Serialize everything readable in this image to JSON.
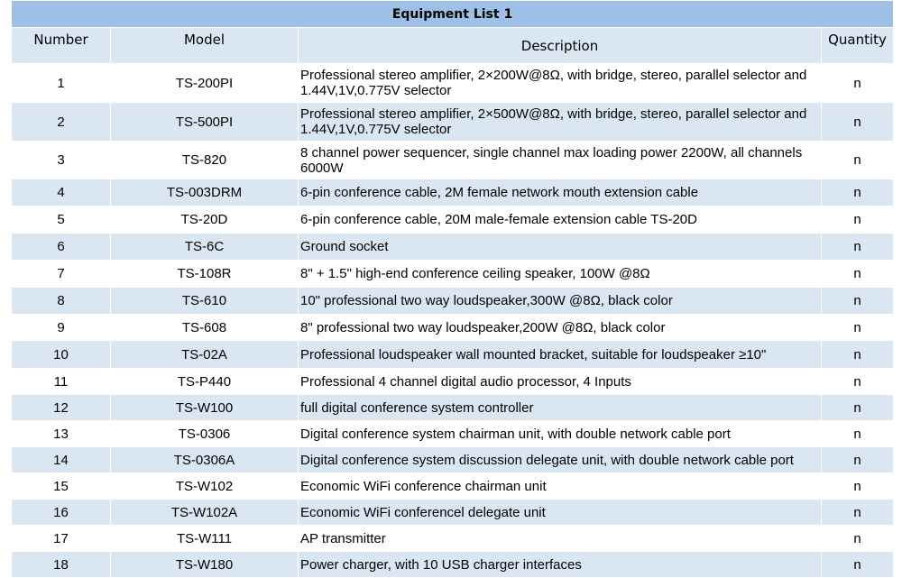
{
  "title": "Equipment List 1",
  "headers": {
    "number": "Number",
    "model": "Model",
    "description": "Description",
    "quantity": "Quantity"
  },
  "rows": [
    {
      "number": "1",
      "model": "TS-200PI",
      "description": "Professional stereo amplifier, 2×200W@8Ω, with bridge, stereo, parallel selector and 1.44V,1V,0.775V selector",
      "quantity": "n"
    },
    {
      "number": "2",
      "model": "TS-500PI",
      "description": "Professional stereo amplifier, 2×500W@8Ω, with bridge, stereo, parallel selector and 1.44V,1V,0.775V selector",
      "quantity": "n"
    },
    {
      "number": "3",
      "model": "TS-820",
      "description": "8 channel power sequencer, single channel max loading power 2200W, all channels 6000W",
      "quantity": "n"
    },
    {
      "number": "4",
      "model": "TS-003DRM",
      "description": "6-pin conference cable, 2M female network mouth extension cable",
      "quantity": "n"
    },
    {
      "number": "5",
      "model": "TS-20D",
      "description": "6-pin conference cable, 20M male-female extension cable TS-20D",
      "quantity": "n"
    },
    {
      "number": "6",
      "model": "TS-6C",
      "description": "Ground socket",
      "quantity": "n"
    },
    {
      "number": "7",
      "model": "TS-108R",
      "description": "8\" + 1.5\" high-end conference ceiling speaker, 100W @8Ω",
      "quantity": "n"
    },
    {
      "number": "8",
      "model": "TS-610",
      "description": "10\" professional two way loudspeaker,300W @8Ω, black color",
      "quantity": "n"
    },
    {
      "number": "9",
      "model": "TS-608",
      "description": "8\" professional two way loudspeaker,200W @8Ω, black color",
      "quantity": "n"
    },
    {
      "number": "10",
      "model": "TS-02A",
      "description": "Professional loudspeaker wall mounted bracket, suitable for loudspeaker ≥10\"",
      "quantity": "n"
    },
    {
      "number": "11",
      "model": "TS-P440",
      "description": "Professional 4 channel digital audio processor, 4 Inputs",
      "quantity": "n"
    },
    {
      "number": "12",
      "model": "TS-W100",
      "description": "full digital conference system controller",
      "quantity": "n"
    },
    {
      "number": "13",
      "model": "TS-0306",
      "description": "Digital conference system chairman unit,  with double network cable port",
      "quantity": "n"
    },
    {
      "number": "14",
      "model": "TS-0306A",
      "description": "Digital conference system discussion delegate unit,  with double network cable port",
      "quantity": "n"
    },
    {
      "number": "15",
      "model": "TS-W102",
      "description": "Economic WiFi conference chairman unit",
      "quantity": "n"
    },
    {
      "number": "16",
      "model": "TS-W102A",
      "description": "Economic WiFi  conferencel delegate unit",
      "quantity": "n"
    },
    {
      "number": "17",
      "model": "TS-W111",
      "description": "AP transmitter",
      "quantity": "n"
    },
    {
      "number": "18",
      "model": "TS-W180",
      "description": "Power charger, with 10 USB charger interfaces",
      "quantity": "n"
    }
  ],
  "colors": {
    "title_bg": "#9fc0e6",
    "header_bg": "#dbe6f3",
    "stripe_bg": "#dbe6f3"
  }
}
